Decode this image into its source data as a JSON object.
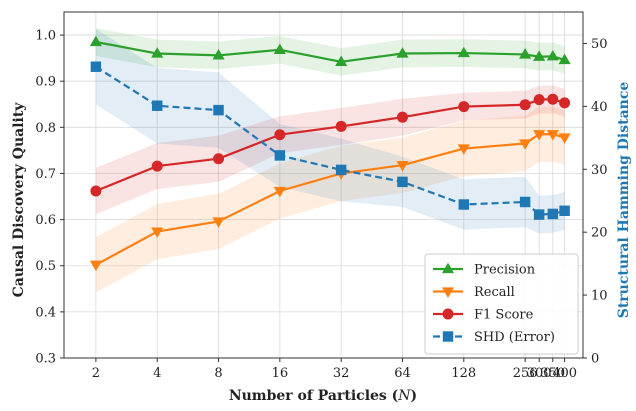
{
  "chart_data": {
    "type": "line",
    "xlabel": "Number of Particles (N)",
    "ylabel_left": "Causal Discovery Quality",
    "ylabel_right": "Structural Hamming Distance",
    "x_scale": "log2",
    "x": [
      2,
      4,
      8,
      16,
      32,
      64,
      128,
      256,
      300,
      350,
      400
    ],
    "x_ticks": [
      "2",
      "4",
      "8",
      "16",
      "32",
      "64",
      "128",
      "256",
      "300",
      "350",
      "400"
    ],
    "ylim_left": [
      0.3,
      1.05
    ],
    "y_ticks_left": [
      "0.3",
      "0.4",
      "0.5",
      "0.6",
      "0.7",
      "0.8",
      "0.9",
      "1.0"
    ],
    "ylim_right": [
      0,
      55
    ],
    "y_ticks_right": [
      "0",
      "10",
      "20",
      "30",
      "40",
      "50"
    ],
    "grid": true,
    "legend_position": "lower-right",
    "series": [
      {
        "name": "Precision",
        "axis": "left",
        "color": "#2ca02c",
        "marker": "triangle-up",
        "linestyle": "solid",
        "values": [
          0.985,
          0.96,
          0.956,
          0.968,
          0.942,
          0.96,
          0.961,
          0.958,
          0.953,
          0.954,
          0.946
        ],
        "band": [
          0.03,
          0.03,
          0.03,
          0.03,
          0.03,
          0.03,
          0.03,
          0.03,
          0.03,
          0.03,
          0.03
        ]
      },
      {
        "name": "Recall",
        "axis": "left",
        "color": "#ff7f0e",
        "marker": "triangle-down",
        "linestyle": "solid",
        "values": [
          0.502,
          0.574,
          0.596,
          0.662,
          0.7,
          0.718,
          0.754,
          0.765,
          0.785,
          0.785,
          0.778
        ],
        "band": [
          0.06,
          0.06,
          0.06,
          0.06,
          0.06,
          0.06,
          0.06,
          0.06,
          0.06,
          0.06,
          0.06
        ]
      },
      {
        "name": "F1 Score",
        "axis": "left",
        "color": "#d62728",
        "marker": "circle",
        "linestyle": "solid",
        "values": [
          0.662,
          0.716,
          0.732,
          0.784,
          0.802,
          0.822,
          0.845,
          0.849,
          0.86,
          0.861,
          0.853
        ],
        "band": [
          0.05,
          0.05,
          0.05,
          0.04,
          0.04,
          0.04,
          0.03,
          0.03,
          0.03,
          0.03,
          0.03
        ]
      },
      {
        "name": "SHD (Error)",
        "axis": "right",
        "color": "#1f77b4",
        "marker": "square",
        "linestyle": "dashed",
        "values": [
          46.3,
          40.1,
          39.4,
          32.2,
          29.9,
          28.0,
          24.4,
          24.8,
          22.8,
          22.9,
          23.4
        ],
        "band": [
          6,
          6,
          6,
          5,
          5,
          4,
          4,
          4,
          3,
          3,
          3
        ]
      }
    ]
  }
}
